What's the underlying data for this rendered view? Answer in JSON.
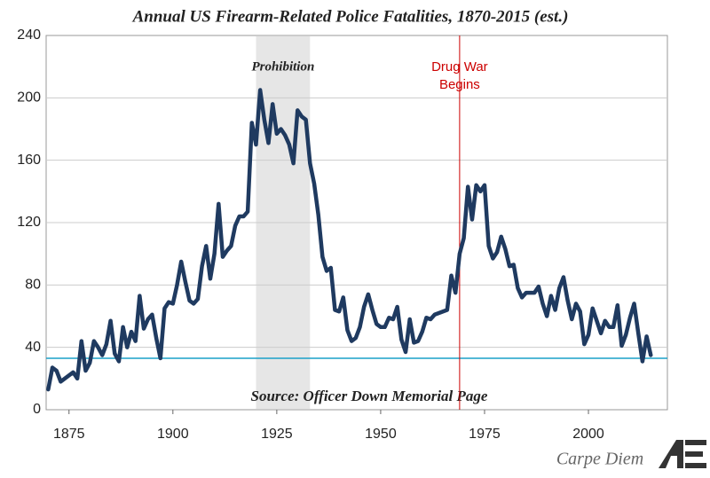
{
  "chart_data": {
    "type": "line",
    "title": "Annual US Firearm-Related Police Fatalities, 1870-2015 (est.)",
    "x": [
      1870,
      1871,
      1872,
      1873,
      1874,
      1875,
      1876,
      1877,
      1878,
      1879,
      1880,
      1881,
      1882,
      1883,
      1884,
      1885,
      1886,
      1887,
      1888,
      1889,
      1890,
      1891,
      1892,
      1893,
      1894,
      1895,
      1896,
      1897,
      1898,
      1899,
      1900,
      1901,
      1902,
      1903,
      1904,
      1905,
      1906,
      1907,
      1908,
      1909,
      1910,
      1911,
      1912,
      1913,
      1914,
      1915,
      1916,
      1917,
      1918,
      1919,
      1920,
      1921,
      1922,
      1923,
      1924,
      1925,
      1926,
      1927,
      1928,
      1929,
      1930,
      1931,
      1932,
      1933,
      1934,
      1935,
      1936,
      1937,
      1938,
      1939,
      1940,
      1941,
      1942,
      1943,
      1944,
      1945,
      1946,
      1947,
      1948,
      1949,
      1950,
      1951,
      1952,
      1953,
      1954,
      1955,
      1956,
      1957,
      1958,
      1959,
      1960,
      1961,
      1962,
      1963,
      1964,
      1965,
      1966,
      1967,
      1968,
      1969,
      1970,
      1971,
      1972,
      1973,
      1974,
      1975,
      1976,
      1977,
      1978,
      1979,
      1980,
      1981,
      1982,
      1983,
      1984,
      1985,
      1986,
      1987,
      1988,
      1989,
      1990,
      1991,
      1992,
      1993,
      1994,
      1995,
      1996,
      1997,
      1998,
      1999,
      2000,
      2001,
      2002,
      2003,
      2004,
      2005,
      2006,
      2007,
      2008,
      2009,
      2010,
      2011,
      2012,
      2013,
      2014,
      2015
    ],
    "series": [
      {
        "name": "Police fatalities",
        "color": "#1f3a60",
        "values": [
          13,
          27,
          25,
          18,
          20,
          22,
          24,
          20,
          44,
          25,
          30,
          44,
          40,
          35,
          42,
          57,
          36,
          31,
          53,
          40,
          50,
          44,
          73,
          52,
          58,
          61,
          46,
          33,
          65,
          69,
          68,
          80,
          95,
          82,
          70,
          68,
          71,
          92,
          105,
          84,
          100,
          132,
          98,
          102,
          105,
          118,
          124,
          124,
          127,
          184,
          170,
          205,
          186,
          171,
          196,
          177,
          180,
          176,
          170,
          158,
          192,
          188,
          186,
          158,
          145,
          125,
          98,
          89,
          91,
          64,
          63,
          72,
          51,
          44,
          46,
          53,
          66,
          74,
          64,
          55,
          53,
          53,
          59,
          58,
          66,
          45,
          37,
          58,
          43,
          44,
          50,
          59,
          58,
          61,
          62,
          63,
          64,
          86,
          75,
          100,
          110,
          143,
          122,
          144,
          140,
          144,
          105,
          97,
          101,
          111,
          103,
          92,
          93,
          78,
          72,
          75,
          75,
          75,
          79,
          68,
          60,
          73,
          64,
          78,
          85,
          70,
          58,
          68,
          63,
          42,
          48,
          65,
          57,
          49,
          57,
          53,
          53,
          67,
          41,
          48,
          59,
          68,
          49,
          31,
          47,
          35
        ]
      }
    ],
    "xlim": [
      1869.5,
      2019
    ],
    "ylim": [
      0,
      240
    ],
    "xticks": [
      1875,
      1900,
      1925,
      1950,
      1975,
      2000
    ],
    "yticks": [
      0,
      40,
      80,
      120,
      160,
      200,
      240
    ],
    "grid": true,
    "shade": {
      "label": "Prohibition",
      "x": [
        1920,
        1933
      ],
      "color": "#e6e6e6"
    },
    "vline": {
      "label": [
        "Drug War",
        "Begins"
      ],
      "x": 1969,
      "color": "#cc0000"
    },
    "hline": {
      "y": 33,
      "color": "#1aa0c8"
    },
    "source": "Source: Officer Down Memorial Page",
    "footer": "Carpe Diem"
  }
}
